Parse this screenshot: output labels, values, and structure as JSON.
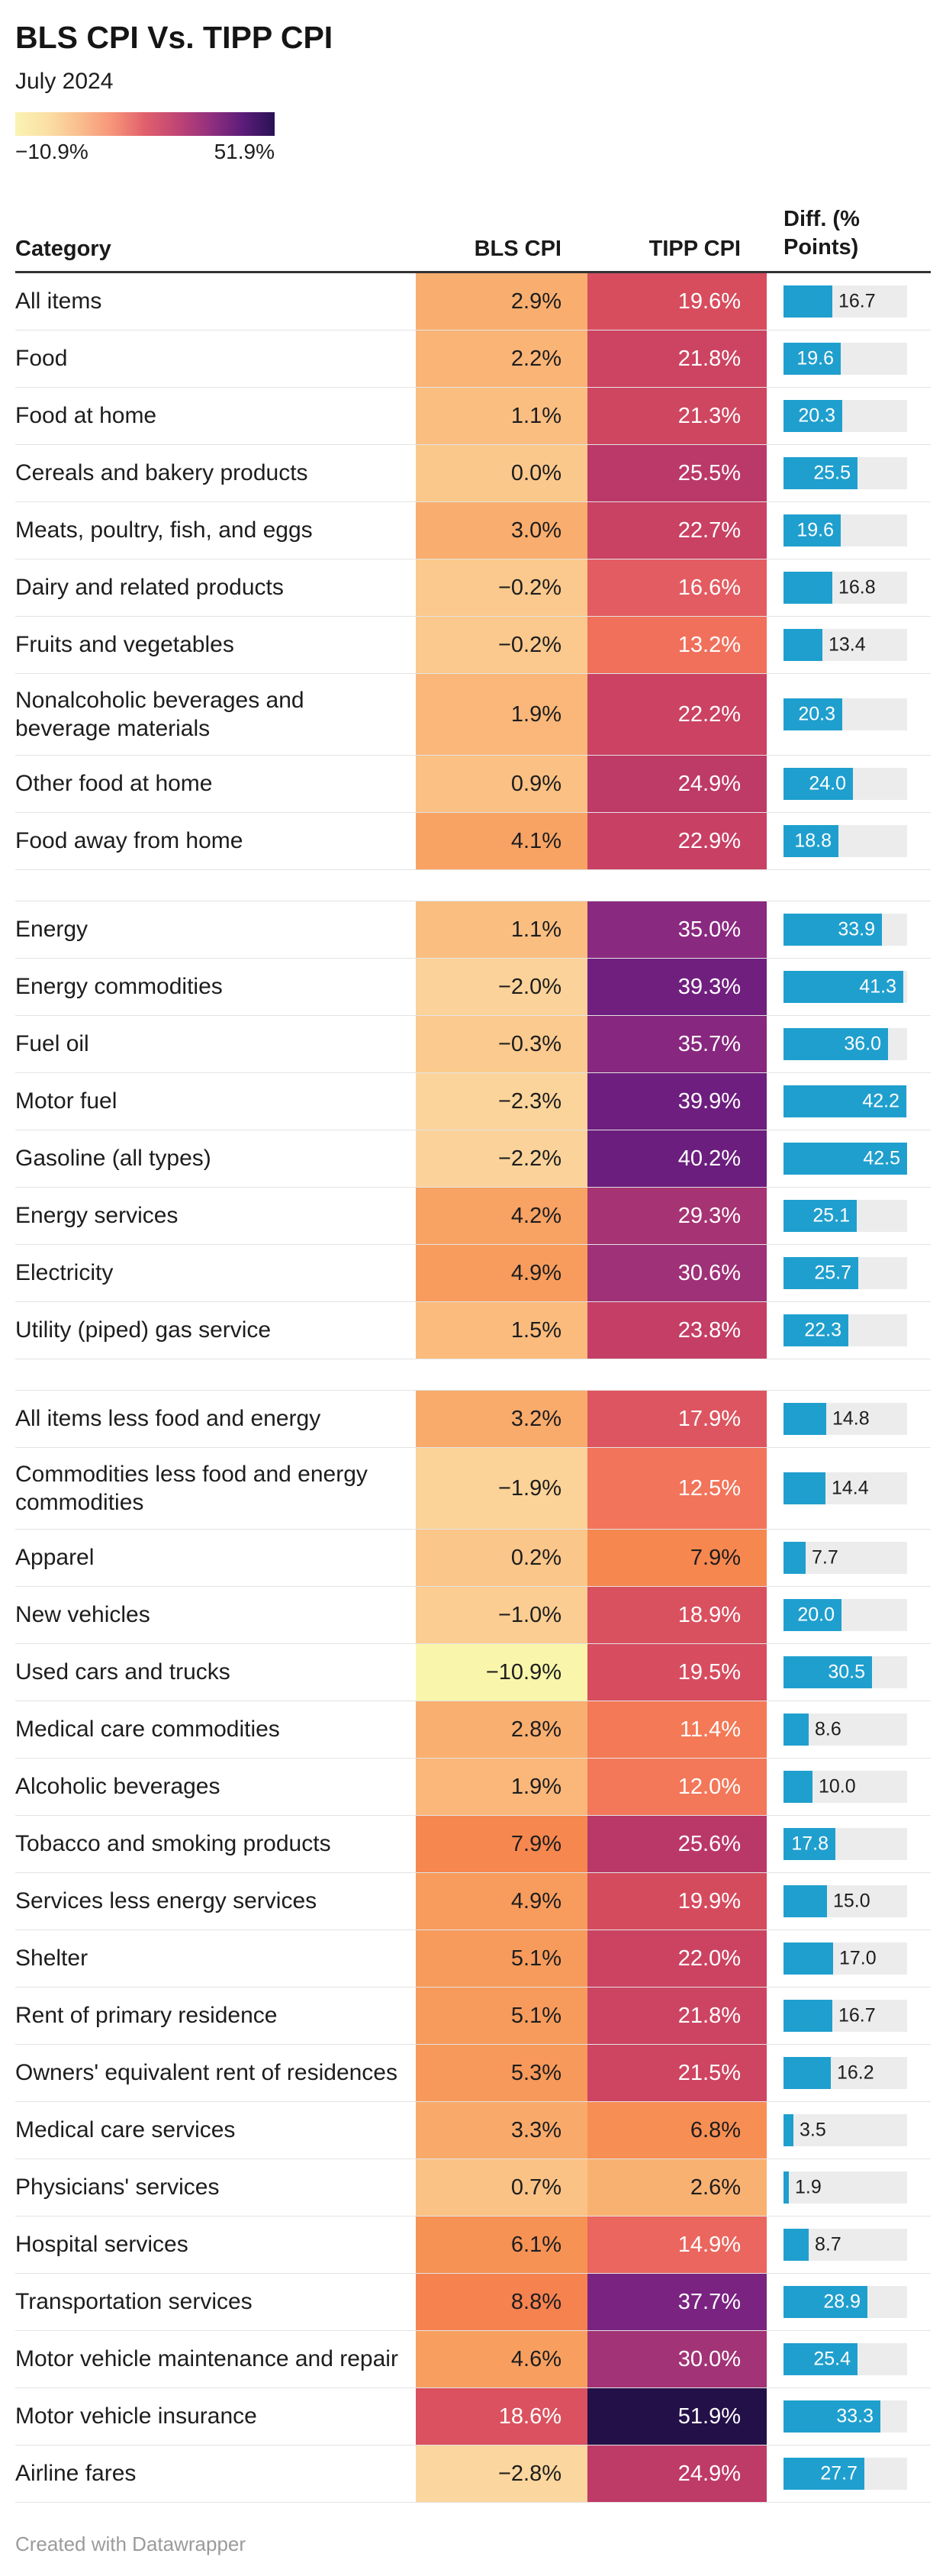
{
  "header": {
    "title": "BLS CPI Vs. TIPP CPI",
    "subtitle": "July 2024"
  },
  "legend": {
    "min_label": "−10.9%",
    "max_label": "51.9%",
    "gradient_stops": [
      "#faf3b3",
      "#fbdfa4",
      "#f9bd8d",
      "#f79379",
      "#e0606c",
      "#c04574",
      "#93307e",
      "#5d1d7a",
      "#2a1155"
    ]
  },
  "table": {
    "headers": {
      "category": "Category",
      "bls": "BLS CPI",
      "tipp": "TIPP CPI",
      "diff": "Diff. (% Points)"
    }
  },
  "scale": {
    "domain_min": -10.9,
    "domain_max": 51.9,
    "bar_max": 42.5,
    "bar_label_inside_min": 17.5,
    "color_stops": [
      [
        -10.9,
        "#f9f6ab"
      ],
      [
        -3,
        "#fbd79f"
      ],
      [
        0,
        "#fbc88c"
      ],
      [
        2,
        "#fab678"
      ],
      [
        4,
        "#f8a464"
      ],
      [
        6,
        "#f79355"
      ],
      [
        8,
        "#f6864f"
      ],
      [
        10,
        "#f57d52"
      ],
      [
        12,
        "#f37759"
      ],
      [
        14,
        "#ee6c5c"
      ],
      [
        16,
        "#e65f61"
      ],
      [
        18,
        "#dd5460"
      ],
      [
        20,
        "#d54b5e"
      ],
      [
        22,
        "#cc4362"
      ],
      [
        24,
        "#c33d66"
      ],
      [
        26,
        "#b83768"
      ],
      [
        28,
        "#ac346e"
      ],
      [
        30,
        "#a23376"
      ],
      [
        32,
        "#972d7b"
      ],
      [
        34,
        "#8f2b80"
      ],
      [
        36,
        "#85267f"
      ],
      [
        38,
        "#782281"
      ],
      [
        40,
        "#6c1e7e"
      ],
      [
        43,
        "#5b1a74"
      ],
      [
        47,
        "#3f1260"
      ],
      [
        51.9,
        "#231049"
      ]
    ]
  },
  "colors": {
    "bar": "#1f9fce",
    "bar_track": "#ececec",
    "bar_label_outside": "#1d1d1d",
    "bar_label_inside": "#ffffff",
    "row_line": "#e3e3e3",
    "header_line": "#333333",
    "dark_text": "#1d1d1d",
    "light_text": "#ffffff"
  },
  "rows": [
    {
      "category": "All items",
      "bls": "2.9%",
      "tipp": "19.6%",
      "diff": "16.7",
      "bls_v": 2.9,
      "tipp_v": 19.6,
      "diff_v": 16.7
    },
    {
      "category": "Food",
      "bls": "2.2%",
      "tipp": "21.8%",
      "diff": "19.6",
      "bls_v": 2.2,
      "tipp_v": 21.8,
      "diff_v": 19.6
    },
    {
      "category": "Food at home",
      "bls": "1.1%",
      "tipp": "21.3%",
      "diff": "20.3",
      "bls_v": 1.1,
      "tipp_v": 21.3,
      "diff_v": 20.3
    },
    {
      "category": "Cereals and bakery products",
      "bls": "0.0%",
      "tipp": "25.5%",
      "diff": "25.5",
      "bls_v": 0.0,
      "tipp_v": 25.5,
      "diff_v": 25.5
    },
    {
      "category": "Meats, poultry, fish, and eggs",
      "bls": "3.0%",
      "tipp": "22.7%",
      "diff": "19.6",
      "bls_v": 3.0,
      "tipp_v": 22.7,
      "diff_v": 19.6
    },
    {
      "category": "Dairy and related products",
      "bls": "−0.2%",
      "tipp": "16.6%",
      "diff": "16.8",
      "bls_v": -0.2,
      "tipp_v": 16.6,
      "diff_v": 16.8
    },
    {
      "category": "Fruits and vegetables",
      "bls": "−0.2%",
      "tipp": "13.2%",
      "diff": "13.4",
      "bls_v": -0.2,
      "tipp_v": 13.2,
      "diff_v": 13.4
    },
    {
      "category": "Nonalcoholic beverages and beverage materials",
      "bls": "1.9%",
      "tipp": "22.2%",
      "diff": "20.3",
      "bls_v": 1.9,
      "tipp_v": 22.2,
      "diff_v": 20.3,
      "tall": true
    },
    {
      "category": "Other food at home",
      "bls": "0.9%",
      "tipp": "24.9%",
      "diff": "24.0",
      "bls_v": 0.9,
      "tipp_v": 24.9,
      "diff_v": 24.0
    },
    {
      "category": "Food away from home",
      "bls": "4.1%",
      "tipp": "22.9%",
      "diff": "18.8",
      "bls_v": 4.1,
      "tipp_v": 22.9,
      "diff_v": 18.8,
      "gap_after": true
    },
    {
      "category": "Energy",
      "bls": "1.1%",
      "tipp": "35.0%",
      "diff": "33.9",
      "bls_v": 1.1,
      "tipp_v": 35.0,
      "diff_v": 33.9
    },
    {
      "category": "Energy commodities",
      "bls": "−2.0%",
      "tipp": "39.3%",
      "diff": "41.3",
      "bls_v": -2.0,
      "tipp_v": 39.3,
      "diff_v": 41.3
    },
    {
      "category": "Fuel oil",
      "bls": "−0.3%",
      "tipp": "35.7%",
      "diff": "36.0",
      "bls_v": -0.3,
      "tipp_v": 35.7,
      "diff_v": 36.0
    },
    {
      "category": "Motor fuel",
      "bls": "−2.3%",
      "tipp": "39.9%",
      "diff": "42.2",
      "bls_v": -2.3,
      "tipp_v": 39.9,
      "diff_v": 42.2
    },
    {
      "category": "Gasoline (all types)",
      "bls": "−2.2%",
      "tipp": "40.2%",
      "diff": "42.5",
      "bls_v": -2.2,
      "tipp_v": 40.2,
      "diff_v": 42.5
    },
    {
      "category": "Energy services",
      "bls": "4.2%",
      "tipp": "29.3%",
      "diff": "25.1",
      "bls_v": 4.2,
      "tipp_v": 29.3,
      "diff_v": 25.1
    },
    {
      "category": "Electricity",
      "bls": "4.9%",
      "tipp": "30.6%",
      "diff": "25.7",
      "bls_v": 4.9,
      "tipp_v": 30.6,
      "diff_v": 25.7
    },
    {
      "category": "Utility (piped) gas service",
      "bls": "1.5%",
      "tipp": "23.8%",
      "diff": "22.3",
      "bls_v": 1.5,
      "tipp_v": 23.8,
      "diff_v": 22.3,
      "gap_after": true
    },
    {
      "category": "All items less food and energy",
      "bls": "3.2%",
      "tipp": "17.9%",
      "diff": "14.8",
      "bls_v": 3.2,
      "tipp_v": 17.9,
      "diff_v": 14.8
    },
    {
      "category": "Commodities less food and energy commodities",
      "bls": "−1.9%",
      "tipp": "12.5%",
      "diff": "14.4",
      "bls_v": -1.9,
      "tipp_v": 12.5,
      "diff_v": 14.4,
      "tall": true
    },
    {
      "category": "Apparel",
      "bls": "0.2%",
      "tipp": "7.9%",
      "diff": "7.7",
      "bls_v": 0.2,
      "tipp_v": 7.9,
      "diff_v": 7.7
    },
    {
      "category": "New vehicles",
      "bls": "−1.0%",
      "tipp": "18.9%",
      "diff": "20.0",
      "bls_v": -1.0,
      "tipp_v": 18.9,
      "diff_v": 20.0
    },
    {
      "category": "Used cars and trucks",
      "bls": "−10.9%",
      "tipp": "19.5%",
      "diff": "30.5",
      "bls_v": -10.9,
      "tipp_v": 19.5,
      "diff_v": 30.5
    },
    {
      "category": "Medical care commodities",
      "bls": "2.8%",
      "tipp": "11.4%",
      "diff": "8.6",
      "bls_v": 2.8,
      "tipp_v": 11.4,
      "diff_v": 8.6
    },
    {
      "category": "Alcoholic beverages",
      "bls": "1.9%",
      "tipp": "12.0%",
      "diff": "10.0",
      "bls_v": 1.9,
      "tipp_v": 12.0,
      "diff_v": 10.0
    },
    {
      "category": "Tobacco and smoking products",
      "bls": "7.9%",
      "tipp": "25.6%",
      "diff": "17.8",
      "bls_v": 7.9,
      "tipp_v": 25.6,
      "diff_v": 17.8
    },
    {
      "category": "Services less energy services",
      "bls": "4.9%",
      "tipp": "19.9%",
      "diff": "15.0",
      "bls_v": 4.9,
      "tipp_v": 19.9,
      "diff_v": 15.0
    },
    {
      "category": "Shelter",
      "bls": "5.1%",
      "tipp": "22.0%",
      "diff": "17.0",
      "bls_v": 5.1,
      "tipp_v": 22.0,
      "diff_v": 17.0
    },
    {
      "category": "Rent of primary residence",
      "bls": "5.1%",
      "tipp": "21.8%",
      "diff": "16.7",
      "bls_v": 5.1,
      "tipp_v": 21.8,
      "diff_v": 16.7
    },
    {
      "category": "Owners' equivalent rent of residences",
      "bls": "5.3%",
      "tipp": "21.5%",
      "diff": "16.2",
      "bls_v": 5.3,
      "tipp_v": 21.5,
      "diff_v": 16.2
    },
    {
      "category": "Medical care services",
      "bls": "3.3%",
      "tipp": "6.8%",
      "diff": "3.5",
      "bls_v": 3.3,
      "tipp_v": 6.8,
      "diff_v": 3.5
    },
    {
      "category": "Physicians' services",
      "bls": "0.7%",
      "tipp": "2.6%",
      "diff": "1.9",
      "bls_v": 0.7,
      "tipp_v": 2.6,
      "diff_v": 1.9
    },
    {
      "category": "Hospital services",
      "bls": "6.1%",
      "tipp": "14.9%",
      "diff": "8.7",
      "bls_v": 6.1,
      "tipp_v": 14.9,
      "diff_v": 8.7
    },
    {
      "category": "Transportation services",
      "bls": "8.8%",
      "tipp": "37.7%",
      "diff": "28.9",
      "bls_v": 8.8,
      "tipp_v": 37.7,
      "diff_v": 28.9
    },
    {
      "category": "Motor vehicle maintenance and repair",
      "bls": "4.6%",
      "tipp": "30.0%",
      "diff": "25.4",
      "bls_v": 4.6,
      "tipp_v": 30.0,
      "diff_v": 25.4
    },
    {
      "category": "Motor vehicle insurance",
      "bls": "18.6%",
      "tipp": "51.9%",
      "diff": "33.3",
      "bls_v": 18.6,
      "tipp_v": 51.9,
      "diff_v": 33.3
    },
    {
      "category": "Airline fares",
      "bls": "−2.8%",
      "tipp": "24.9%",
      "diff": "27.7",
      "bls_v": -2.8,
      "tipp_v": 24.9,
      "diff_v": 27.7
    }
  ],
  "footer": {
    "credit": "Created with Datawrapper"
  },
  "chart_data": {
    "type": "table",
    "title": "BLS CPI Vs. TIPP CPI",
    "subtitle": "July 2024",
    "legend_range": [
      -10.9,
      51.9
    ],
    "columns": [
      "Category",
      "BLS CPI",
      "TIPP CPI",
      "Diff. (% Points)"
    ],
    "categories": [
      "All items",
      "Food",
      "Food at home",
      "Cereals and bakery products",
      "Meats, poultry, fish, and eggs",
      "Dairy and related products",
      "Fruits and vegetables",
      "Nonalcoholic beverages and beverage materials",
      "Other food at home",
      "Food away from home",
      "Energy",
      "Energy commodities",
      "Fuel oil",
      "Motor fuel",
      "Gasoline (all types)",
      "Energy services",
      "Electricity",
      "Utility (piped) gas service",
      "All items less food and energy",
      "Commodities less food and energy commodities",
      "Apparel",
      "New vehicles",
      "Used cars and trucks",
      "Medical care commodities",
      "Alcoholic beverages",
      "Tobacco and smoking products",
      "Services less energy services",
      "Shelter",
      "Rent of primary residence",
      "Owners' equivalent rent of residences",
      "Medical care services",
      "Physicians' services",
      "Hospital services",
      "Transportation services",
      "Motor vehicle maintenance and repair",
      "Motor vehicle insurance",
      "Airline fares"
    ],
    "series": [
      {
        "name": "BLS CPI",
        "values": [
          2.9,
          2.2,
          1.1,
          0.0,
          3.0,
          -0.2,
          -0.2,
          1.9,
          0.9,
          4.1,
          1.1,
          -2.0,
          -0.3,
          -2.3,
          -2.2,
          4.2,
          4.9,
          1.5,
          3.2,
          -1.9,
          0.2,
          -1.0,
          -10.9,
          2.8,
          1.9,
          7.9,
          4.9,
          5.1,
          5.1,
          5.3,
          3.3,
          0.7,
          6.1,
          8.8,
          4.6,
          18.6,
          -2.8
        ]
      },
      {
        "name": "TIPP CPI",
        "values": [
          19.6,
          21.8,
          21.3,
          25.5,
          22.7,
          16.6,
          13.2,
          22.2,
          24.9,
          22.9,
          35.0,
          39.3,
          35.7,
          39.9,
          40.2,
          29.3,
          30.6,
          23.8,
          17.9,
          12.5,
          7.9,
          18.9,
          19.5,
          11.4,
          12.0,
          25.6,
          19.9,
          22.0,
          21.8,
          21.5,
          6.8,
          2.6,
          14.9,
          37.7,
          30.0,
          51.9,
          24.9
        ]
      },
      {
        "name": "Diff. (% Points)",
        "values": [
          16.7,
          19.6,
          20.3,
          25.5,
          19.6,
          16.8,
          13.4,
          20.3,
          24.0,
          18.8,
          33.9,
          41.3,
          36.0,
          42.2,
          42.5,
          25.1,
          25.7,
          22.3,
          14.8,
          14.4,
          7.7,
          20.0,
          30.5,
          8.6,
          10.0,
          17.8,
          15.0,
          17.0,
          16.7,
          16.2,
          3.5,
          1.9,
          8.7,
          28.9,
          25.4,
          33.3,
          27.7
        ]
      }
    ],
    "group_breaks_after": [
      "Food away from home",
      "Utility (piped) gas service"
    ],
    "bar_axis_max": 42.5
  }
}
